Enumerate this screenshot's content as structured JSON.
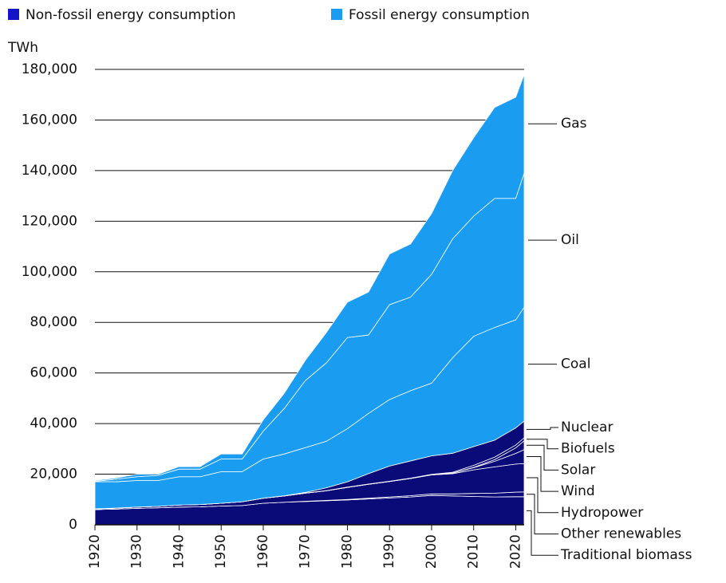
{
  "chart_data": {
    "type": "stacked_area",
    "y_label": "TWh",
    "legend": [
      {
        "label": "Non-fossil energy consumption",
        "color": "#1414c8"
      },
      {
        "label": "Fossil energy consumption",
        "color": "#1a9cf0"
      }
    ],
    "x": [
      1920,
      1925,
      1930,
      1935,
      1940,
      1945,
      1950,
      1955,
      1960,
      1965,
      1970,
      1975,
      1980,
      1985,
      1990,
      1995,
      2000,
      2005,
      2010,
      2015,
      2020,
      2022
    ],
    "series": [
      {
        "name": "Traditional biomass",
        "color": "#0a0a78",
        "values": [
          6000,
          6200,
          6500,
          6700,
          7000,
          7100,
          7400,
          7600,
          8500,
          8900,
          9200,
          9500,
          9800,
          10200,
          10600,
          11000,
          11600,
          11400,
          11200,
          11000,
          11100,
          11100
        ]
      },
      {
        "name": "Other renewables",
        "color": "#0a0a78",
        "values": [
          0,
          0,
          0,
          0,
          0,
          0,
          0,
          0,
          0,
          0,
          100,
          150,
          200,
          300,
          400,
          500,
          600,
          800,
          1200,
          1500,
          1800,
          1900
        ]
      },
      {
        "name": "Hydropower",
        "color": "#0a0a78",
        "values": [
          300,
          400,
          500,
          600,
          800,
          900,
          1100,
          1500,
          2000,
          2500,
          3200,
          3800,
          4800,
          5500,
          6100,
          6800,
          7500,
          8000,
          9300,
          10400,
          11100,
          11200
        ]
      },
      {
        "name": "Wind",
        "color": "#0a0a78",
        "values": [
          0,
          0,
          0,
          0,
          0,
          0,
          0,
          0,
          0,
          0,
          0,
          0,
          0,
          0,
          0,
          10,
          80,
          260,
          900,
          2200,
          4200,
          5500
        ]
      },
      {
        "name": "Solar",
        "color": "#0a0a78",
        "values": [
          0,
          0,
          0,
          0,
          0,
          0,
          0,
          0,
          0,
          0,
          0,
          0,
          0,
          0,
          0,
          0,
          0,
          10,
          90,
          670,
          2200,
          3500
        ]
      },
      {
        "name": "Biofuels",
        "color": "#0a0a78",
        "values": [
          0,
          0,
          0,
          0,
          0,
          0,
          0,
          0,
          0,
          0,
          50,
          60,
          80,
          100,
          120,
          130,
          150,
          300,
          800,
          1000,
          1100,
          1200
        ]
      },
      {
        "name": "Nuclear",
        "color": "#0a0a78",
        "values": [
          0,
          0,
          0,
          0,
          0,
          0,
          0,
          0,
          0,
          60,
          230,
          1100,
          2100,
          4100,
          6000,
          6800,
          7300,
          7500,
          7400,
          6700,
          6800,
          6600
        ]
      },
      {
        "name": "Coal",
        "color": "#1a9cf0",
        "values": [
          10700,
          10400,
          10500,
          10200,
          11200,
          11000,
          12500,
          11900,
          15500,
          16540,
          17720,
          18390,
          21020,
          23800,
          26280,
          27760,
          28770,
          37730,
          43610,
          44530,
          42700,
          45000
        ]
      },
      {
        "name": "Oil",
        "color": "#1a9cf0",
        "values": [
          200,
          1000,
          1500,
          2000,
          3000,
          3000,
          5000,
          5000,
          11000,
          18000,
          26500,
          31000,
          36000,
          31000,
          37500,
          37000,
          43000,
          47000,
          47500,
          51000,
          48000,
          53000
        ]
      },
      {
        "name": "Gas",
        "color": "#1a9cf0",
        "values": [
          300,
          500,
          1000,
          500,
          1000,
          1000,
          2000,
          2000,
          4500,
          6000,
          8000,
          12000,
          14000,
          17000,
          20000,
          21000,
          24000,
          27000,
          31000,
          36000,
          40000,
          39000
        ]
      }
    ],
    "xlim": [
      1920,
      2022
    ],
    "xticks": [
      1920,
      1930,
      1940,
      1950,
      1960,
      1970,
      1980,
      1990,
      2000,
      2010,
      2020
    ],
    "ylim": [
      0,
      180000
    ],
    "yticks": [
      0,
      {
        "value": 20000,
        "label": "20,000"
      },
      {
        "value": 40000,
        "label": "40,000"
      },
      {
        "value": 60000,
        "label": "60,000"
      },
      {
        "value": 80000,
        "label": "80,000"
      },
      {
        "value": 100000,
        "label": "100,000"
      },
      {
        "value": 120000,
        "label": "120,000"
      },
      {
        "value": 140000,
        "label": "140,000"
      },
      {
        "value": 160000,
        "label": "160,000"
      },
      {
        "value": {
          "value": 180000,
          "label": "180,000"
        },
        "label": "180,000"
      }
    ],
    "grid": true
  }
}
